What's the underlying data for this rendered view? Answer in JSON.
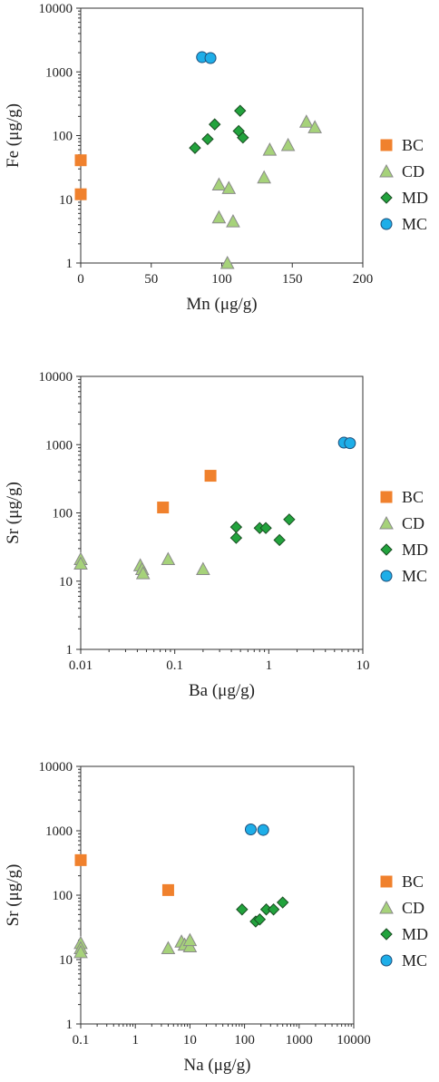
{
  "series_styles": {
    "BC": {
      "marker": "square",
      "color": "#f0812d",
      "stroke": "#f0812d"
    },
    "CD": {
      "marker": "triangle",
      "color": "#a6d27a",
      "stroke": "#8a8a8a"
    },
    "MD": {
      "marker": "diamond",
      "color": "#22a33d",
      "stroke": "#1a4d22"
    },
    "MC": {
      "marker": "circle",
      "color": "#1eaee8",
      "stroke": "#1f4f7a"
    }
  },
  "chart_data": [
    {
      "type": "scatter",
      "xlabel": "Mn (μg/g)",
      "ylabel": "Fe (μg/g)",
      "xscale": "linear",
      "yscale": "log",
      "xlim": [
        0,
        200
      ],
      "ylim": [
        1,
        10000
      ],
      "xticks": [
        "0",
        "50",
        "100",
        "150",
        "200"
      ],
      "yticks": [
        "1",
        "10",
        "100",
        "1000",
        "10000"
      ],
      "legend": [
        "BC",
        "CD",
        "MD",
        "MC"
      ],
      "legend_position": "right",
      "series": [
        {
          "name": "BC",
          "points": [
            [
              0,
              41
            ],
            [
              0,
              12
            ]
          ]
        },
        {
          "name": "CD",
          "points": [
            [
              98,
              17
            ],
            [
              105,
              15
            ],
            [
              98,
              5.2
            ],
            [
              108,
              4.5
            ],
            [
              104,
              1
            ],
            [
              130,
              22
            ],
            [
              134,
              60
            ],
            [
              147,
              71
            ],
            [
              160,
              165
            ],
            [
              166,
              135
            ]
          ]
        },
        {
          "name": "MD",
          "points": [
            [
              81,
              64
            ],
            [
              90,
              88
            ],
            [
              95,
              150
            ],
            [
              113,
              245
            ],
            [
              112,
              118
            ],
            [
              115,
              93
            ]
          ]
        },
        {
          "name": "MC",
          "points": [
            [
              86,
              1700
            ],
            [
              92,
              1650
            ]
          ]
        }
      ]
    },
    {
      "type": "scatter",
      "xlabel": "Ba (μg/g)",
      "ylabel": "Sr (μg/g)",
      "xscale": "log",
      "yscale": "log",
      "xlim": [
        0.01,
        10
      ],
      "ylim": [
        1,
        10000
      ],
      "xticks": [
        "0.01",
        "0.1",
        "1",
        "10"
      ],
      "yticks": [
        "1",
        "10",
        "100",
        "1000",
        "10000"
      ],
      "legend": [
        "BC",
        "CD",
        "MD",
        "MC"
      ],
      "legend_position": "right",
      "series": [
        {
          "name": "BC",
          "points": [
            [
              0.075,
              120
            ],
            [
              0.24,
              350
            ]
          ]
        },
        {
          "name": "CD",
          "points": [
            [
              0.01,
              21
            ],
            [
              0.01,
              18
            ],
            [
              0.043,
              17
            ],
            [
              0.045,
              15
            ],
            [
              0.046,
              13
            ],
            [
              0.085,
              21
            ],
            [
              0.2,
              15
            ]
          ]
        },
        {
          "name": "MD",
          "points": [
            [
              0.45,
              62
            ],
            [
              0.45,
              43
            ],
            [
              0.8,
              60
            ],
            [
              0.93,
              60
            ],
            [
              1.3,
              40
            ],
            [
              1.65,
              80
            ]
          ]
        },
        {
          "name": "MC",
          "points": [
            [
              6.3,
              1070
            ],
            [
              7.3,
              1050
            ]
          ]
        }
      ]
    },
    {
      "type": "scatter",
      "xlabel": "Na (μg/g)",
      "ylabel": "Sr (μg/g)",
      "xscale": "log",
      "yscale": "log",
      "xlim": [
        0.1,
        10000
      ],
      "ylim": [
        1,
        10000
      ],
      "xticks": [
        "0.1",
        "1",
        "10",
        "100",
        "1000",
        "10000"
      ],
      "yticks": [
        "1",
        "10",
        "100",
        "1000",
        "10000"
      ],
      "legend": [
        "BC",
        "CD",
        "MD",
        "MC"
      ],
      "legend_position": "right",
      "series": [
        {
          "name": "BC",
          "points": [
            [
              0.1,
              350
            ],
            [
              4,
              120
            ]
          ]
        },
        {
          "name": "CD",
          "points": [
            [
              0.1,
              18
            ],
            [
              0.1,
              15
            ],
            [
              0.1,
              13
            ],
            [
              4,
              15
            ],
            [
              7,
              19
            ],
            [
              8,
              17
            ],
            [
              10,
              16
            ],
            [
              10,
              20
            ]
          ]
        },
        {
          "name": "MD",
          "points": [
            [
              90,
              60
            ],
            [
              160,
              39
            ],
            [
              190,
              42
            ],
            [
              250,
              60
            ],
            [
              340,
              60
            ],
            [
              500,
              77
            ]
          ]
        },
        {
          "name": "MC",
          "points": [
            [
              130,
              1050
            ],
            [
              220,
              1030
            ]
          ]
        }
      ]
    }
  ]
}
